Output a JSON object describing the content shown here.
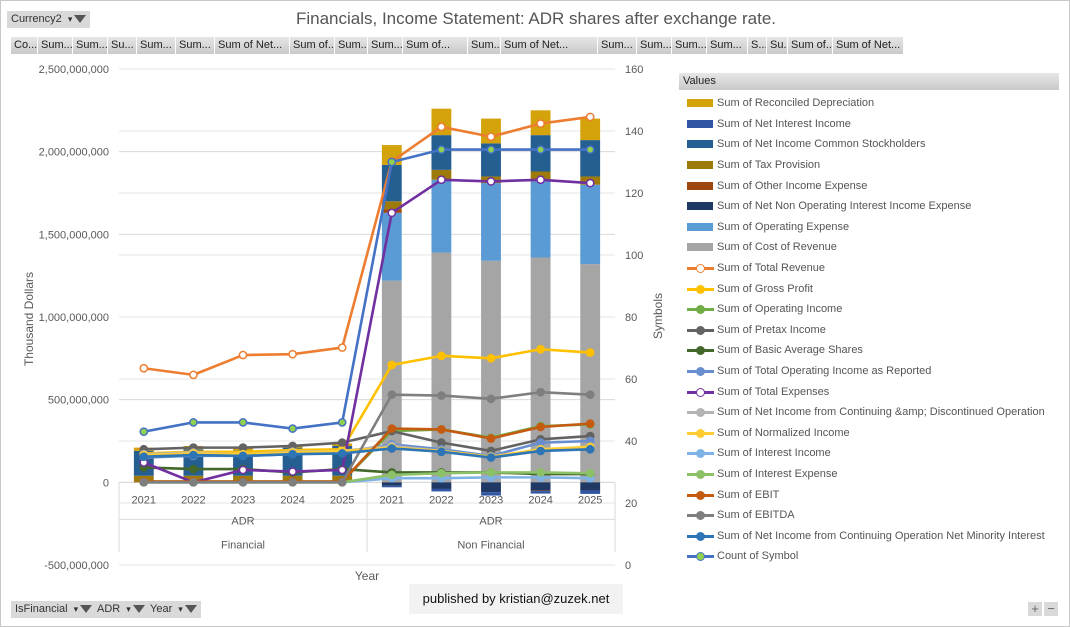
{
  "report_filter": {
    "label": "Currency2"
  },
  "axis_fields": [
    {
      "label": "IsFinancial"
    },
    {
      "label": "ADR"
    },
    {
      "label": "Year"
    }
  ],
  "values_buttons": [
    "Co...",
    "Sum...",
    "Sum...",
    "Su...",
    "Sum...",
    "Sum...",
    "Sum of Net...",
    "Sum of...",
    "Sum...",
    "Sum...",
    "Sum of...",
    "Sum...",
    "Sum of Net...",
    "Sum...",
    "Sum...",
    "Sum...",
    "Sum...",
    "S...",
    "Su...",
    "Sum of...",
    "Sum of Net..."
  ],
  "legend_header": "Values",
  "published": "published by kristian@zuzek.net",
  "zoom_controls": {
    "plus": "+",
    "minus": "−"
  },
  "chart_data": {
    "type": "bar",
    "title": "Financials, Income Statement: ADR shares after exchange rate.",
    "xlabel": "Year",
    "ylabel": "Thousand Dollars",
    "y2label": "Symbols",
    "ylim": [
      -500000000,
      2500000000
    ],
    "y2lim": [
      0,
      160
    ],
    "yticks": [
      "2,500,000,000",
      "2,000,000,000",
      "1,500,000,000",
      "1,000,000,000",
      "500,000,000",
      "0",
      "-500,000,000"
    ],
    "y2ticks": [
      "160",
      "140",
      "120",
      "100",
      "80",
      "60",
      "40",
      "20",
      "0"
    ],
    "grid": true,
    "legend": "right",
    "groups": [
      {
        "is_financial": "Financial",
        "adr": "ADR",
        "years": [
          "2021",
          "2022",
          "2023",
          "2024",
          "2025"
        ]
      },
      {
        "is_financial": "Non Financial",
        "adr": "ADR",
        "years": [
          "2021",
          "2022",
          "2023",
          "2024",
          "2025"
        ]
      }
    ],
    "categories": [
      "2021",
      "2022",
      "2023",
      "2024",
      "2025",
      "2021",
      "2022",
      "2023",
      "2024",
      "2025"
    ],
    "bar_series": [
      {
        "name": "Sum of Reconciled Depreciation",
        "color": "#d4a20a",
        "values": [
          20000000,
          20000000,
          15000000,
          15000000,
          15000000,
          120000000,
          160000000,
          150000000,
          150000000,
          130000000
        ]
      },
      {
        "name": "Sum of Net Interest Income",
        "color": "#2f55a4",
        "values": [
          0,
          0,
          0,
          0,
          0,
          -10000000,
          -15000000,
          -20000000,
          -15000000,
          -20000000
        ]
      },
      {
        "name": "Sum of Net Income Common Stockholders",
        "color": "#255e91",
        "values": [
          150000000,
          160000000,
          155000000,
          170000000,
          180000000,
          220000000,
          210000000,
          200000000,
          220000000,
          220000000
        ]
      },
      {
        "name": "Sum of Tax Provision",
        "color": "#9e7a0a",
        "values": [
          40000000,
          40000000,
          40000000,
          40000000,
          40000000,
          50000000,
          60000000,
          40000000,
          60000000,
          50000000
        ]
      },
      {
        "name": "Sum of Other Income Expense",
        "color": "#9e480e",
        "values": [
          0,
          0,
          0,
          0,
          0,
          20000000,
          0,
          0,
          -3000000,
          0
        ]
      },
      {
        "name": "Sum of Net Non Operating Interest Income Expense",
        "color": "#1f3864",
        "values": [
          0,
          0,
          0,
          0,
          0,
          -20000000,
          -40000000,
          -60000000,
          -50000000,
          -50000000
        ]
      },
      {
        "name": "Sum of Operating Expense",
        "color": "#5b9bd5",
        "values": [
          0,
          0,
          0,
          0,
          0,
          410000000,
          440000000,
          470000000,
          460000000,
          480000000
        ]
      },
      {
        "name": "Sum of Cost of Revenue",
        "color": "#a5a5a5",
        "values": [
          0,
          0,
          0,
          0,
          0,
          1220000000,
          1390000000,
          1340000000,
          1360000000,
          1320000000
        ]
      }
    ],
    "line_series": [
      {
        "name": "Sum of Total Revenue",
        "color": "#ed7d31",
        "marker": "hollow",
        "axis": "left",
        "values": [
          690000000,
          650000000,
          770000000,
          775000000,
          815000000,
          1940000000,
          2150000000,
          2090000000,
          2170000000,
          2210000000
        ]
      },
      {
        "name": "Sum of Gross Profit",
        "color": "#ffc000",
        "marker": "filled",
        "axis": "left",
        "values": [
          175000000,
          185000000,
          185000000,
          195000000,
          200000000,
          710000000,
          765000000,
          750000000,
          805000000,
          785000000
        ]
      },
      {
        "name": "Sum of Operating Income",
        "color": "#70ad47",
        "marker": "filled",
        "axis": "left",
        "values": [
          5000000,
          5000000,
          5000000,
          5000000,
          5000000,
          310000000,
          320000000,
          270000000,
          340000000,
          350000000
        ]
      },
      {
        "name": "Sum of Pretax Income",
        "color": "#636363",
        "marker": "filled",
        "axis": "left",
        "values": [
          200000000,
          210000000,
          210000000,
          220000000,
          240000000,
          310000000,
          240000000,
          190000000,
          260000000,
          280000000
        ]
      },
      {
        "name": "Sum of Basic Average Shares",
        "color": "#43682b",
        "marker": "filled",
        "axis": "left",
        "values": [
          90000000,
          80000000,
          80000000,
          60000000,
          80000000,
          60000000,
          60000000,
          60000000,
          50000000,
          50000000
        ]
      },
      {
        "name": "Sum of Total Operating Income as Reported",
        "color": "#698ed0",
        "marker": "filled",
        "axis": "left",
        "values": [
          150000000,
          160000000,
          160000000,
          170000000,
          180000000,
          230000000,
          200000000,
          160000000,
          240000000,
          250000000
        ]
      },
      {
        "name": "Sum of Total Expenses",
        "color": "#7030a0",
        "marker": "hollow",
        "axis": "left",
        "values": [
          120000000,
          0,
          75000000,
          65000000,
          75000000,
          1630000000,
          1830000000,
          1820000000,
          1830000000,
          1810000000
        ]
      },
      {
        "name": "Sum of Net Income from Continuing &amp; Discontinued Operation",
        "color": "#b4b4b4",
        "marker": "filled",
        "axis": "left",
        "values": [
          170000000,
          180000000,
          170000000,
          185000000,
          190000000,
          220000000,
          190000000,
          150000000,
          200000000,
          210000000
        ]
      },
      {
        "name": "Sum of Normalized Income",
        "color": "#ffcd33",
        "marker": "filled",
        "axis": "left",
        "values": [
          165000000,
          175000000,
          170000000,
          180000000,
          190000000,
          210000000,
          190000000,
          155000000,
          200000000,
          215000000
        ]
      },
      {
        "name": "Sum of Interest Income",
        "color": "#7fb2e5",
        "marker": "filled",
        "axis": "left",
        "values": [
          0,
          0,
          0,
          0,
          0,
          25000000,
          25000000,
          30000000,
          30000000,
          25000000
        ]
      },
      {
        "name": "Sum of Interest Expense",
        "color": "#8cc168",
        "marker": "filled",
        "axis": "left",
        "values": [
          0,
          0,
          0,
          0,
          0,
          45000000,
          55000000,
          60000000,
          60000000,
          55000000
        ]
      },
      {
        "name": "Sum of EBIT",
        "color": "#c55a11",
        "marker": "filled",
        "axis": "left",
        "values": [
          5000000,
          5000000,
          5000000,
          5000000,
          5000000,
          325000000,
          320000000,
          265000000,
          335000000,
          355000000
        ]
      },
      {
        "name": "Sum of EBITDA",
        "color": "#7f7f7f",
        "marker": "filled",
        "axis": "left",
        "values": [
          0,
          0,
          0,
          0,
          0,
          530000000,
          525000000,
          505000000,
          545000000,
          530000000
        ]
      },
      {
        "name": "Sum of Net Income from Continuing Operation Net Minority Interest",
        "color": "#2e75b6",
        "marker": "filled",
        "axis": "left",
        "values": [
          155000000,
          165000000,
          160000000,
          170000000,
          175000000,
          205000000,
          185000000,
          150000000,
          190000000,
          200000000
        ]
      },
      {
        "name": "Count of Symbol",
        "color": "#4472c4",
        "marker": "green-dot",
        "axis": "right",
        "values": [
          43,
          46,
          46,
          44,
          46,
          130,
          134,
          134,
          134,
          134
        ]
      }
    ]
  }
}
